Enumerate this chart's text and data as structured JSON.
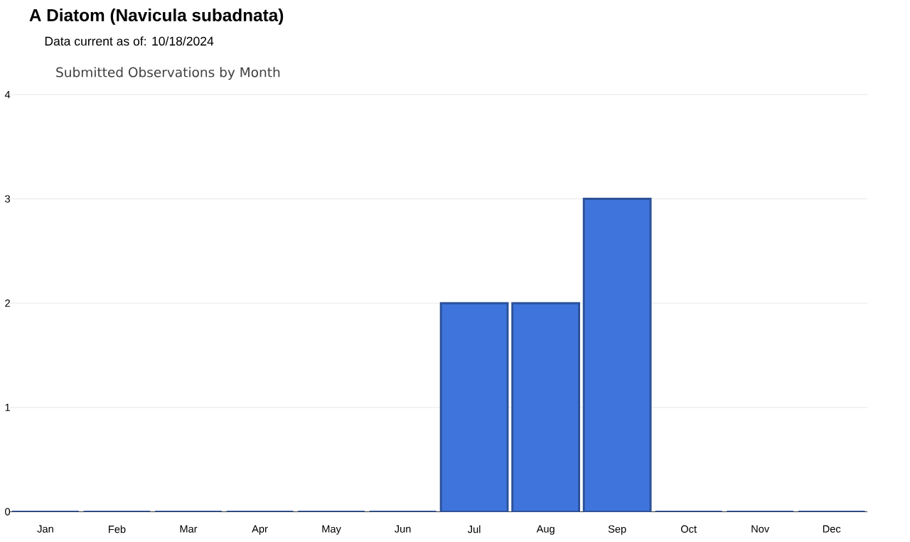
{
  "chart_data": {
    "type": "bar",
    "title": "A Diatom   (Navicula subadnata)",
    "subtitle": "Data current as of: 10/18/2024",
    "annotations": [
      "Submitted Observations by Month"
    ],
    "categories": [
      "Jan",
      "Feb",
      "Mar",
      "Apr",
      "May",
      "Jun",
      "Jul",
      "Aug",
      "Sep",
      "Oct",
      "Nov",
      "Dec"
    ],
    "values": [
      0,
      0,
      0,
      0,
      0,
      0,
      2,
      2,
      3,
      0,
      0,
      0
    ],
    "color": "#3f74dc",
    "ylim": [
      0,
      4
    ],
    "yticks": [
      0,
      1,
      2,
      3,
      4
    ],
    "grid": "y"
  }
}
